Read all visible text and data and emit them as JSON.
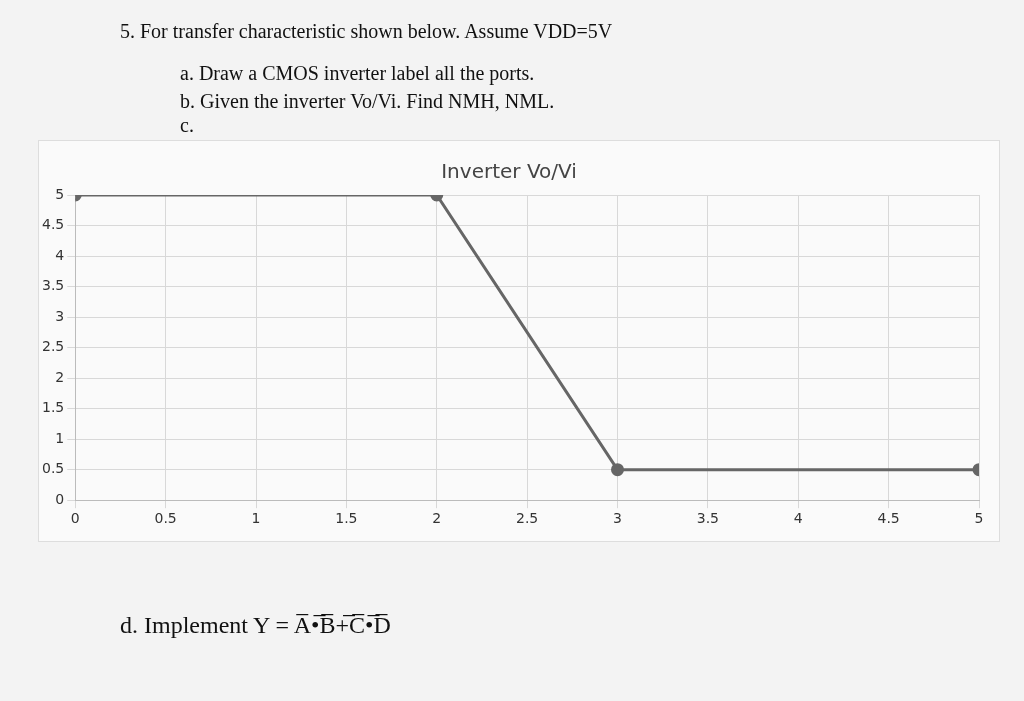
{
  "chart_data": {
    "type": "line",
    "title": "Inverter Vo/Vi",
    "annotations": [
      "5. For transfer characteristic shown below. Assume VDD=5V",
      "a. Draw a CMOS inverter label all the ports.",
      "b. Given the inverter Vo/Vi. Find NMH, NML.",
      "c.",
      "d. Implement Y = A̅•̅B̅+̅C̅•̅D̅"
    ],
    "series": [
      {
        "color": "#666666",
        "x": [
          0,
          2,
          3,
          5
        ],
        "values": [
          5,
          5,
          0.5,
          0.5
        ]
      }
    ],
    "xlim": [
      0,
      5
    ],
    "xticks": [
      0,
      0.5,
      1,
      1.5,
      2,
      2.5,
      3,
      3.5,
      4,
      4.5,
      5
    ],
    "ylim": [
      0,
      5
    ],
    "yticks": [
      0,
      0.5,
      1,
      1.5,
      2,
      2.5,
      3,
      3.5,
      4,
      4.5,
      5
    ],
    "grid": true,
    "legend": false,
    "marker": "circle",
    "line_style": "solid"
  }
}
